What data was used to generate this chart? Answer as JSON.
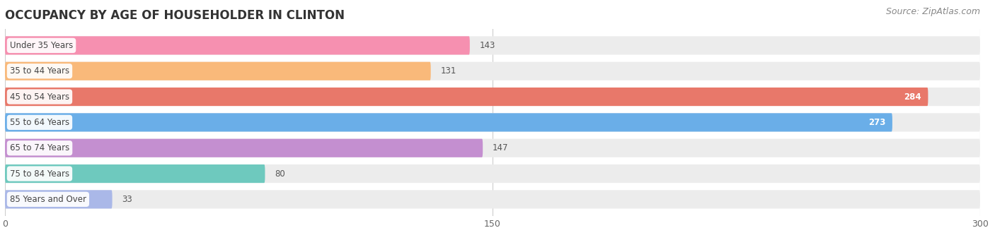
{
  "title": "OCCUPANCY BY AGE OF HOUSEHOLDER IN CLINTON",
  "source": "Source: ZipAtlas.com",
  "categories": [
    "Under 35 Years",
    "35 to 44 Years",
    "45 to 54 Years",
    "55 to 64 Years",
    "65 to 74 Years",
    "75 to 84 Years",
    "85 Years and Over"
  ],
  "values": [
    143,
    131,
    284,
    273,
    147,
    80,
    33
  ],
  "bar_colors": [
    "#f690b0",
    "#f9b97a",
    "#e8786a",
    "#6aaee8",
    "#c48fd0",
    "#6ec9be",
    "#aab8e8"
  ],
  "xlim": [
    0,
    300
  ],
  "xticks": [
    0,
    150,
    300
  ],
  "bg_color": "#ffffff",
  "row_bg_color": "#efefef",
  "title_fontsize": 12,
  "source_fontsize": 9,
  "value_threshold": 150
}
